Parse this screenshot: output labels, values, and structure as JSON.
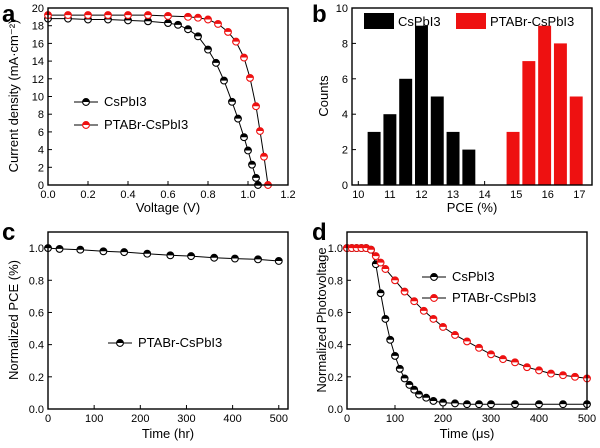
{
  "colors": {
    "series_black": "#000000",
    "series_red": "#ee1111",
    "axis": "#000000"
  },
  "chart_data": [
    {
      "panel_label": "a",
      "type": "line",
      "xlabel": "Voltage (V)",
      "ylabel": "Current density (mA·cm⁻²)",
      "xlim": [
        0,
        1.2
      ],
      "ylim": [
        0,
        20
      ],
      "xticks": [
        "0.0",
        "0.2",
        "0.4",
        "0.6",
        "0.8",
        "1.0",
        "1.2"
      ],
      "yticks": [
        "0",
        "2",
        "4",
        "6",
        "8",
        "10",
        "12",
        "14",
        "16",
        "18",
        "20"
      ],
      "legend_position": "bottom-left",
      "series": [
        {
          "name": "CsPbI3",
          "marker": "half-filled circle",
          "color": "#000000",
          "x": [
            0.0,
            0.1,
            0.2,
            0.3,
            0.4,
            0.5,
            0.6,
            0.65,
            0.7,
            0.75,
            0.8,
            0.84,
            0.88,
            0.92,
            0.95,
            0.98,
            1.0,
            1.02,
            1.04,
            1.05
          ],
          "y": [
            18.8,
            18.8,
            18.7,
            18.7,
            18.6,
            18.5,
            18.3,
            18.1,
            17.6,
            16.8,
            15.3,
            13.8,
            11.8,
            9.4,
            7.5,
            5.4,
            3.9,
            2.3,
            0.8,
            0.0
          ]
        },
        {
          "name": "PTABr-CsPbI3",
          "marker": "half-filled circle",
          "color": "#ee1111",
          "x": [
            0.0,
            0.1,
            0.2,
            0.3,
            0.4,
            0.5,
            0.6,
            0.7,
            0.75,
            0.8,
            0.85,
            0.9,
            0.94,
            0.98,
            1.01,
            1.04,
            1.06,
            1.08,
            1.1
          ],
          "y": [
            19.2,
            19.2,
            19.2,
            19.2,
            19.2,
            19.2,
            19.1,
            19.0,
            18.9,
            18.7,
            18.2,
            17.3,
            16.2,
            14.4,
            12.1,
            8.9,
            6.1,
            3.2,
            0.0
          ]
        }
      ]
    },
    {
      "panel_label": "b",
      "type": "bar",
      "xlabel": "PCE (%)",
      "ylabel": "Counts",
      "xlim": [
        9.8,
        17.4
      ],
      "ylim": [
        0,
        10
      ],
      "xticks": [
        "10",
        "11",
        "12",
        "13",
        "14",
        "15",
        "16",
        "17"
      ],
      "yticks": [
        "0",
        "2",
        "4",
        "6",
        "8",
        "10"
      ],
      "legend_position": "top",
      "series": [
        {
          "name": "CsPbI3",
          "color": "#000000",
          "x": [
            10.5,
            11,
            11.5,
            12,
            12.5,
            13,
            13.5
          ],
          "values": [
            3,
            4,
            6,
            9,
            5,
            3,
            2
          ]
        },
        {
          "name": "PTABr-CsPbI3",
          "color": "#ee1111",
          "x": [
            14.9,
            15.4,
            15.9,
            16.4,
            16.9
          ],
          "values": [
            3,
            7,
            9,
            8,
            5
          ]
        }
      ]
    },
    {
      "panel_label": "c",
      "type": "line",
      "xlabel": "Time (hr)",
      "ylabel": "Normalized PCE (%)",
      "xlim": [
        0,
        520
      ],
      "ylim": [
        0,
        1.1
      ],
      "xticks": [
        "0",
        "100",
        "200",
        "300",
        "400",
        "500"
      ],
      "yticks": [
        "0.0",
        "0.2",
        "0.4",
        "0.6",
        "0.8",
        "1.0"
      ],
      "legend_position": "center",
      "series": [
        {
          "name": "PTABr-CsPbI3",
          "marker": "half-filled circle",
          "color": "#000000",
          "x": [
            0,
            25,
            70,
            120,
            165,
            215,
            265,
            310,
            360,
            405,
            455,
            500
          ],
          "y": [
            1.0,
            0.995,
            0.99,
            0.98,
            0.975,
            0.965,
            0.955,
            0.95,
            0.94,
            0.935,
            0.93,
            0.92
          ]
        }
      ]
    },
    {
      "panel_label": "d",
      "type": "line",
      "xlabel": "Time (μs)",
      "ylabel": "Normalized Photovoltage",
      "xlim": [
        0,
        500
      ],
      "ylim": [
        0,
        1.1
      ],
      "xticks": [
        "0",
        "100",
        "200",
        "300",
        "400",
        "500"
      ],
      "yticks": [
        "0.0",
        "0.2",
        "0.4",
        "0.6",
        "0.8",
        "1.0"
      ],
      "legend_position": "top-right",
      "series": [
        {
          "name": "CsPbI3",
          "marker": "half-filled circle",
          "color": "#000000",
          "x": [
            0,
            10,
            20,
            30,
            40,
            50,
            60,
            70,
            80,
            90,
            100,
            110,
            120,
            130,
            140,
            150,
            165,
            180,
            200,
            225,
            250,
            275,
            300,
            350,
            400,
            450,
            500
          ],
          "y": [
            1.0,
            1.0,
            1.0,
            1.0,
            1.0,
            0.99,
            0.9,
            0.72,
            0.56,
            0.43,
            0.33,
            0.25,
            0.19,
            0.15,
            0.12,
            0.09,
            0.07,
            0.05,
            0.04,
            0.035,
            0.03,
            0.03,
            0.03,
            0.03,
            0.03,
            0.03,
            0.03
          ]
        },
        {
          "name": "PTABr-CsPbI3",
          "marker": "half-filled circle",
          "color": "#ee1111",
          "x": [
            0,
            10,
            20,
            30,
            40,
            50,
            60,
            70,
            80,
            100,
            120,
            140,
            160,
            180,
            200,
            225,
            250,
            275,
            300,
            325,
            350,
            375,
            400,
            425,
            450,
            475,
            500
          ],
          "y": [
            1.0,
            1.0,
            1.0,
            1.0,
            1.0,
            0.99,
            0.95,
            0.91,
            0.87,
            0.8,
            0.73,
            0.67,
            0.61,
            0.56,
            0.51,
            0.46,
            0.42,
            0.38,
            0.34,
            0.31,
            0.29,
            0.26,
            0.24,
            0.22,
            0.21,
            0.2,
            0.19
          ]
        }
      ]
    }
  ]
}
